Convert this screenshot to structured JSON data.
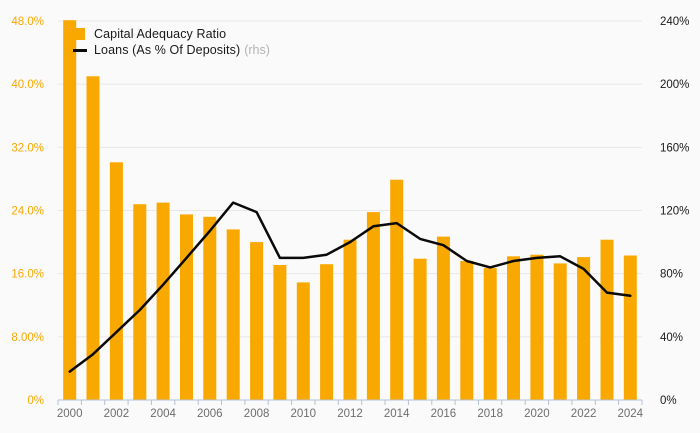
{
  "legend": {
    "bar_series_label": "Capital Adequacy Ratio",
    "line_series_label": "Loans (As % Of Deposits)",
    "line_series_suffix": "(rhs)"
  },
  "colors": {
    "bar": "#F9A800",
    "line": "#0A0A0A",
    "background": "#FAFAFA",
    "gridline": "#E8E8E8",
    "axis_line": "#B5C1D4",
    "left_axis_text": "#F9A800",
    "right_axis_text": "#1A1A1A",
    "x_axis_text": "#6E6E6E",
    "legend_text": "#1A1A1A",
    "legend_suffix_text": "#B3B3B3"
  },
  "chart_data": {
    "type": "bar",
    "subtype": "bar-line-combo",
    "title": "",
    "grid": "horizontal",
    "legend_position": "top-left",
    "categories": [
      "2000",
      "2001",
      "2002",
      "2003",
      "2004",
      "2005",
      "2006",
      "2007",
      "2008",
      "2009",
      "2010",
      "2011",
      "2012",
      "2013",
      "2014",
      "2015",
      "2016",
      "2017",
      "2018",
      "2019",
      "2020",
      "2021",
      "2022",
      "2023",
      "2024"
    ],
    "series": [
      {
        "name": "Capital Adequacy Ratio",
        "mark": "bar",
        "axis": "left",
        "unit": "%",
        "values": [
          48.1,
          41.0,
          30.1,
          24.8,
          25.0,
          23.5,
          23.2,
          21.6,
          20.0,
          17.1,
          14.9,
          17.2,
          20.3,
          23.8,
          27.9,
          17.9,
          20.7,
          17.6,
          16.7,
          18.2,
          18.4,
          17.3,
          18.1,
          20.3,
          18.3
        ]
      },
      {
        "name": "Loans (As % Of Deposits) (rhs)",
        "mark": "line",
        "axis": "right",
        "unit": "%",
        "values": [
          18,
          29,
          43,
          57,
          73,
          90,
          107,
          125,
          119,
          90,
          90,
          92,
          100,
          110,
          112,
          102,
          98,
          88,
          84,
          88,
          90,
          91,
          83,
          68,
          66
        ]
      }
    ],
    "left_axis": {
      "min": 0,
      "max": 48,
      "tick_values": [
        48,
        40,
        32,
        24,
        16,
        8,
        0
      ],
      "tick_labels": [
        "48.0%",
        "40.0%",
        "32.0%",
        "24.0%",
        "16.0%",
        "8.00%",
        "0%"
      ]
    },
    "right_axis": {
      "min": 0,
      "max": 240,
      "tick_values": [
        240,
        200,
        160,
        120,
        80,
        40,
        0
      ],
      "tick_labels": [
        "240%",
        "200%",
        "160%",
        "120%",
        "80%",
        "40%",
        "0%"
      ]
    },
    "x_axis": {
      "labeled_years": [
        "2000",
        "2002",
        "2004",
        "2006",
        "2008",
        "2010",
        "2012",
        "2014",
        "2016",
        "2018",
        "2020",
        "2022",
        "2024"
      ]
    }
  }
}
